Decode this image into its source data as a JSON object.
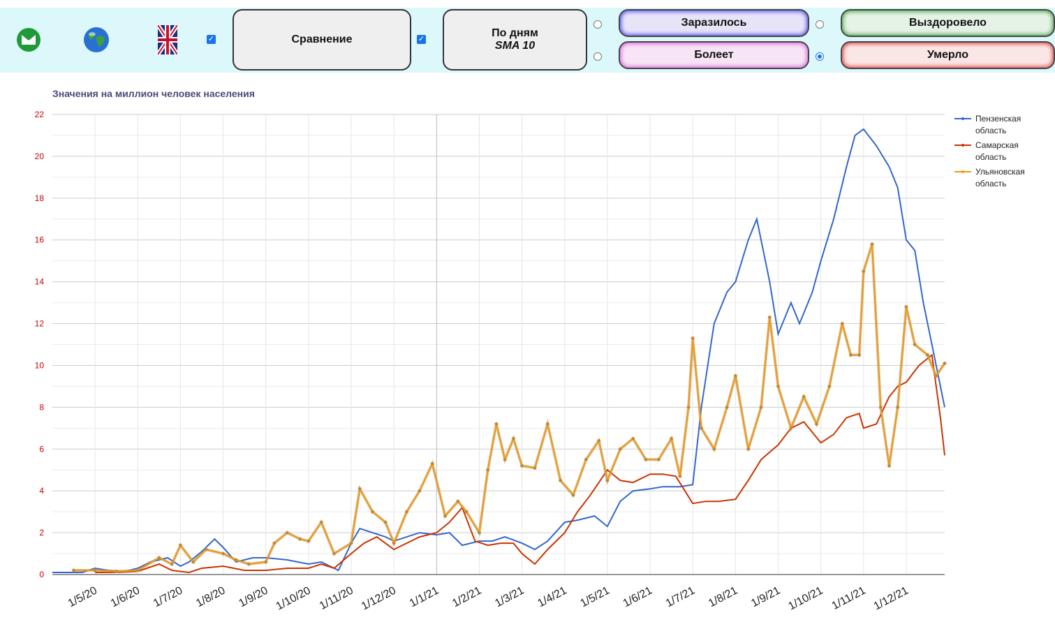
{
  "toolbar": {
    "compare_label": "Сравнение",
    "by_days_label": "По дням",
    "sma_label": "SMA 10",
    "infected_label": "Заразилось",
    "sick_label": "Болеет",
    "recovered_label": "Выздоровело",
    "died_label": "Умерло",
    "compare_checked": true,
    "days_checked": true,
    "selected_radio": "died",
    "icons": [
      "mail-icon",
      "globe-icon",
      "uk-flag-icon"
    ]
  },
  "colors": {
    "penza": "#3366cc",
    "samara": "#cc3300",
    "ulyanovsk": "#f09a10",
    "toolbar_bg": "#dcf8fb"
  },
  "chart_data": {
    "type": "line",
    "title": "Значения на миллион человек населения",
    "ylim": [
      0,
      22
    ],
    "yticks": [
      0,
      2,
      4,
      6,
      8,
      10,
      12,
      14,
      16,
      18,
      20,
      22
    ],
    "xlabels": [
      "1/5/20",
      "1/6/20",
      "1/7/20",
      "1/8/20",
      "1/9/20",
      "1/10/20",
      "1/11/20",
      "1/12/20",
      "1/1/21",
      "1/2/21",
      "1/3/21",
      "1/4/21",
      "1/5/21",
      "1/6/21",
      "1/7/21",
      "1/8/21",
      "1/9/21",
      "1/10/21",
      "1/11/21",
      "1/12/21"
    ],
    "x_month_index_start": -1,
    "x_month_index_end": 19.9,
    "grid": true,
    "legend_position": "right",
    "series": [
      {
        "name": "Пензенская область",
        "color_key": "penza",
        "markers": false,
        "points": [
          [
            -1,
            0.1
          ],
          [
            -0.3,
            0.1
          ],
          [
            0,
            0.3
          ],
          [
            0.3,
            0.2
          ],
          [
            0.7,
            0.15
          ],
          [
            1,
            0.3
          ],
          [
            1.3,
            0.6
          ],
          [
            1.7,
            0.8
          ],
          [
            2,
            0.4
          ],
          [
            2.2,
            0.6
          ],
          [
            2.5,
            1.1
          ],
          [
            2.8,
            1.7
          ],
          [
            3,
            1.3
          ],
          [
            3.3,
            0.6
          ],
          [
            3.7,
            0.8
          ],
          [
            4,
            0.8
          ],
          [
            4.5,
            0.7
          ],
          [
            5,
            0.5
          ],
          [
            5.3,
            0.6
          ],
          [
            5.7,
            0.2
          ],
          [
            6,
            1.5
          ],
          [
            6.2,
            2.2
          ],
          [
            6.5,
            2.0
          ],
          [
            6.8,
            1.8
          ],
          [
            7,
            1.6
          ],
          [
            7.3,
            1.8
          ],
          [
            7.6,
            2.0
          ],
          [
            8,
            1.9
          ],
          [
            8.3,
            2.0
          ],
          [
            8.6,
            1.4
          ],
          [
            9,
            1.6
          ],
          [
            9.3,
            1.6
          ],
          [
            9.6,
            1.8
          ],
          [
            10,
            1.5
          ],
          [
            10.3,
            1.2
          ],
          [
            10.6,
            1.6
          ],
          [
            11,
            2.5
          ],
          [
            11.3,
            2.6
          ],
          [
            11.7,
            2.8
          ],
          [
            12,
            2.3
          ],
          [
            12.3,
            3.5
          ],
          [
            12.6,
            4.0
          ],
          [
            13,
            4.1
          ],
          [
            13.3,
            4.2
          ],
          [
            13.7,
            4.2
          ],
          [
            14,
            4.3
          ],
          [
            14.2,
            8.0
          ],
          [
            14.5,
            12.0
          ],
          [
            14.8,
            13.5
          ],
          [
            15,
            14.0
          ],
          [
            15.3,
            16.0
          ],
          [
            15.5,
            17.0
          ],
          [
            15.8,
            14.0
          ],
          [
            16,
            11.5
          ],
          [
            16.3,
            13.0
          ],
          [
            16.5,
            12.0
          ],
          [
            16.8,
            13.5
          ],
          [
            17,
            15.0
          ],
          [
            17.3,
            17.0
          ],
          [
            17.6,
            19.5
          ],
          [
            17.8,
            21.0
          ],
          [
            18,
            21.3
          ],
          [
            18.3,
            20.5
          ],
          [
            18.6,
            19.5
          ],
          [
            18.8,
            18.5
          ],
          [
            19,
            16.0
          ],
          [
            19.2,
            15.5
          ],
          [
            19.4,
            13.0
          ],
          [
            19.6,
            11.0
          ],
          [
            19.8,
            9.0
          ],
          [
            19.9,
            8.0
          ]
        ]
      },
      {
        "name": "Самарская область",
        "color_key": "samara",
        "markers": false,
        "points": [
          [
            0,
            0.1
          ],
          [
            0.5,
            0.1
          ],
          [
            1,
            0.15
          ],
          [
            1.5,
            0.5
          ],
          [
            1.8,
            0.2
          ],
          [
            2.2,
            0.1
          ],
          [
            2.5,
            0.3
          ],
          [
            3,
            0.4
          ],
          [
            3.5,
            0.2
          ],
          [
            4,
            0.2
          ],
          [
            4.5,
            0.3
          ],
          [
            5,
            0.3
          ],
          [
            5.3,
            0.5
          ],
          [
            5.6,
            0.3
          ],
          [
            6,
            1.0
          ],
          [
            6.3,
            1.5
          ],
          [
            6.6,
            1.8
          ],
          [
            7,
            1.2
          ],
          [
            7.3,
            1.5
          ],
          [
            7.6,
            1.8
          ],
          [
            8,
            2.0
          ],
          [
            8.3,
            2.5
          ],
          [
            8.6,
            3.2
          ],
          [
            8.9,
            1.6
          ],
          [
            9.2,
            1.4
          ],
          [
            9.5,
            1.5
          ],
          [
            9.8,
            1.5
          ],
          [
            10,
            1.0
          ],
          [
            10.3,
            0.5
          ],
          [
            10.6,
            1.2
          ],
          [
            11,
            2.0
          ],
          [
            11.3,
            3.0
          ],
          [
            11.6,
            3.8
          ],
          [
            12,
            5.0
          ],
          [
            12.3,
            4.5
          ],
          [
            12.6,
            4.4
          ],
          [
            13,
            4.8
          ],
          [
            13.3,
            4.8
          ],
          [
            13.6,
            4.7
          ],
          [
            14,
            3.4
          ],
          [
            14.3,
            3.5
          ],
          [
            14.6,
            3.5
          ],
          [
            15,
            3.6
          ],
          [
            15.3,
            4.5
          ],
          [
            15.6,
            5.5
          ],
          [
            16,
            6.2
          ],
          [
            16.3,
            7.0
          ],
          [
            16.6,
            7.3
          ],
          [
            17,
            6.3
          ],
          [
            17.3,
            6.7
          ],
          [
            17.6,
            7.5
          ],
          [
            17.9,
            7.7
          ],
          [
            18,
            7.0
          ],
          [
            18.3,
            7.2
          ],
          [
            18.6,
            8.5
          ],
          [
            18.8,
            9.0
          ],
          [
            19,
            9.2
          ],
          [
            19.3,
            10.0
          ],
          [
            19.6,
            10.5
          ],
          [
            19.8,
            7.5
          ],
          [
            19.9,
            5.7
          ]
        ]
      },
      {
        "name": "Ульяновская область",
        "color_key": "ulyanovsk",
        "markers": true,
        "points": [
          [
            -0.5,
            0.2
          ],
          [
            0,
            0.2
          ],
          [
            0.5,
            0.15
          ],
          [
            1,
            0.2
          ],
          [
            1.5,
            0.8
          ],
          [
            1.8,
            0.5
          ],
          [
            2,
            1.4
          ],
          [
            2.3,
            0.6
          ],
          [
            2.6,
            1.2
          ],
          [
            3,
            1.0
          ],
          [
            3.3,
            0.7
          ],
          [
            3.6,
            0.5
          ],
          [
            4,
            0.6
          ],
          [
            4.2,
            1.5
          ],
          [
            4.5,
            2.0
          ],
          [
            4.8,
            1.7
          ],
          [
            5,
            1.6
          ],
          [
            5.3,
            2.5
          ],
          [
            5.6,
            1.0
          ],
          [
            6,
            1.5
          ],
          [
            6.2,
            4.1
          ],
          [
            6.5,
            3.0
          ],
          [
            6.8,
            2.5
          ],
          [
            7,
            1.5
          ],
          [
            7.3,
            3.0
          ],
          [
            7.6,
            4.0
          ],
          [
            7.9,
            5.3
          ],
          [
            8.2,
            2.8
          ],
          [
            8.5,
            3.5
          ],
          [
            8.7,
            3.0
          ],
          [
            9,
            2.0
          ],
          [
            9.2,
            5.0
          ],
          [
            9.4,
            7.2
          ],
          [
            9.6,
            5.5
          ],
          [
            9.8,
            6.5
          ],
          [
            10,
            5.2
          ],
          [
            10.3,
            5.1
          ],
          [
            10.6,
            7.2
          ],
          [
            10.9,
            4.5
          ],
          [
            11.2,
            3.8
          ],
          [
            11.5,
            5.5
          ],
          [
            11.8,
            6.4
          ],
          [
            12,
            4.5
          ],
          [
            12.3,
            6.0
          ],
          [
            12.6,
            6.5
          ],
          [
            12.9,
            5.5
          ],
          [
            13.2,
            5.5
          ],
          [
            13.5,
            6.5
          ],
          [
            13.7,
            4.7
          ],
          [
            13.9,
            8.0
          ],
          [
            14.0,
            11.3
          ],
          [
            14.2,
            7.0
          ],
          [
            14.5,
            6.0
          ],
          [
            14.8,
            8.0
          ],
          [
            15,
            9.5
          ],
          [
            15.3,
            6.0
          ],
          [
            15.6,
            8.0
          ],
          [
            15.8,
            12.3
          ],
          [
            16,
            9.0
          ],
          [
            16.3,
            7.0
          ],
          [
            16.6,
            8.5
          ],
          [
            16.9,
            7.2
          ],
          [
            17.2,
            9.0
          ],
          [
            17.5,
            12.0
          ],
          [
            17.7,
            10.5
          ],
          [
            17.9,
            10.5
          ],
          [
            18,
            14.5
          ],
          [
            18.2,
            15.8
          ],
          [
            18.4,
            8.0
          ],
          [
            18.6,
            5.2
          ],
          [
            18.8,
            8.0
          ],
          [
            19,
            12.8
          ],
          [
            19.2,
            11.0
          ],
          [
            19.5,
            10.5
          ],
          [
            19.7,
            9.5
          ],
          [
            19.9,
            10.1
          ]
        ]
      }
    ]
  }
}
